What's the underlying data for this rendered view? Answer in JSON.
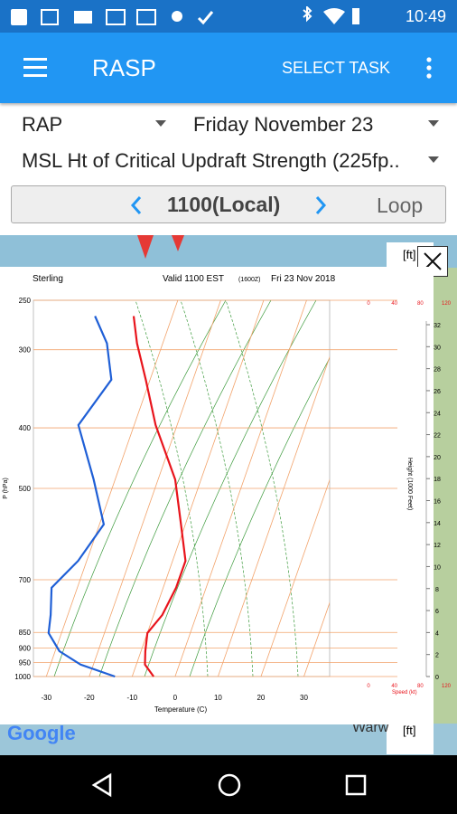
{
  "status": {
    "time": "10:49"
  },
  "app_bar": {
    "title": "RASP",
    "action": "SELECT TASK"
  },
  "controls": {
    "model": "RAP",
    "date": "Friday November 23",
    "parameter": "MSL Ht of Critical Updraft Strength (225fp..",
    "time": "1100(Local)",
    "loop": "Loop"
  },
  "map": {
    "unit_top": "[ft]",
    "unit_bottom": "[ft]",
    "attribution": "Google",
    "place": "Warw"
  },
  "sounding": {
    "station": "Sterling",
    "valid": "Valid 1100 EST",
    "utc": "(1600Z)",
    "date": "Fri 23 Nov 2018",
    "x_label": "Temperature (C)",
    "y_label": "P (hPa)",
    "height_label": "Height (1000 Feet)",
    "speed_label": "Speed (kt)",
    "xlim": [
      -33,
      36
    ],
    "xticks": [
      -30,
      -20,
      -10,
      0,
      10,
      20,
      30
    ],
    "ylim": [
      1000,
      250
    ],
    "yticks": [
      250,
      300,
      400,
      500,
      700,
      850,
      900,
      950,
      1000
    ],
    "log_scale": true,
    "height_lim": [
      0,
      32
    ],
    "height_ticks": [
      0,
      2,
      4,
      6,
      8,
      10,
      12,
      14,
      16,
      18,
      20,
      22,
      24,
      26,
      28,
      30,
      32
    ],
    "speed_lim": [
      0,
      120
    ],
    "speed_ticks": [
      0,
      40,
      80,
      120
    ],
    "temperature": {
      "color": "#e8141c",
      "pressure": [
        265,
        293,
        335,
        396,
        484,
        571,
        653,
        721,
        797,
        852,
        911,
        957,
        1000
      ],
      "values": [
        -39,
        -36,
        -31,
        -25,
        -16,
        -11,
        -7,
        -7,
        -8,
        -10,
        -9,
        -8,
        -5
      ]
    },
    "dewpoint": {
      "color": "#1f5fd6",
      "pressure": [
        265,
        293,
        335,
        396,
        484,
        571,
        653,
        721,
        797,
        852,
        911,
        957,
        1000
      ],
      "values": [
        -48,
        -43,
        -39,
        -43,
        -35,
        -29,
        -32,
        -36,
        -34,
        -33,
        -29,
        -23,
        -14
      ]
    }
  }
}
